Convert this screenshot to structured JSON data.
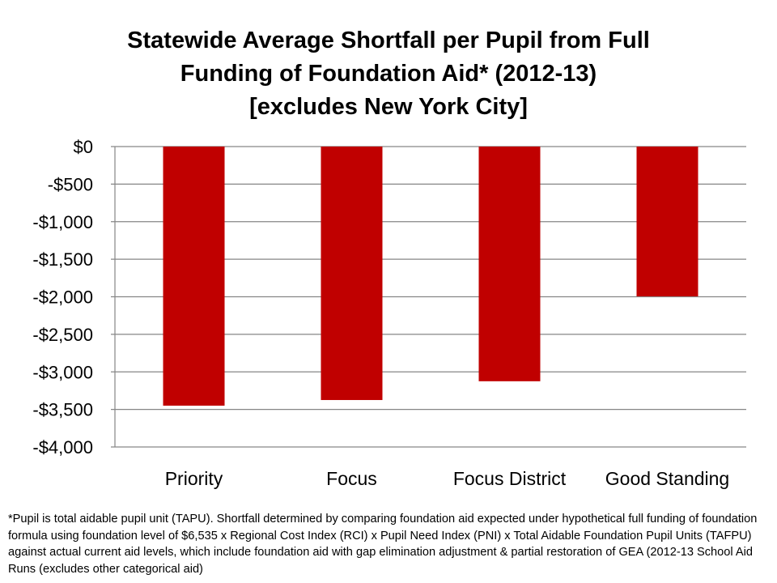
{
  "chart_data": {
    "type": "bar",
    "title_lines": [
      "Statewide Average Shortfall per Pupil from Full",
      "Funding of Foundation Aid* (2012-13)",
      "[excludes New York City]"
    ],
    "categories": [
      "Priority",
      "Focus",
      "Focus District",
      "Good Standing"
    ],
    "values": [
      -3450,
      -3375,
      -3125,
      -1995
    ],
    "xlabel": "",
    "ylabel": "",
    "ylim": [
      -4000,
      0
    ],
    "yticks": [
      0,
      -500,
      -1000,
      -1500,
      -2000,
      -2500,
      -3000,
      -3500,
      -4000
    ],
    "ytick_labels": [
      "$0",
      "-$500",
      "-$1,000",
      "-$1,500",
      "-$2,000",
      "-$2,500",
      "-$3,000",
      "-$3,500",
      "-$4,000"
    ],
    "grid": true,
    "legend": "none",
    "bar_color": "#C00000",
    "grid_color": "#868686"
  },
  "footnote": "*Pupil is total aidable pupil unit (TAPU). Shortfall determined by comparing foundation aid expected  under hypothetical full funding of foundation formula using foundation level of $6,535 x Regional Cost Index (RCI) x Pupil Need Index (PNI) x Total Aidable Foundation Pupil Units (TAFPU) against actual current aid levels, which include foundation aid with gap elimination adjustment & partial restoration of GEA (2012-13 School Aid Runs (excludes other categorical aid)"
}
